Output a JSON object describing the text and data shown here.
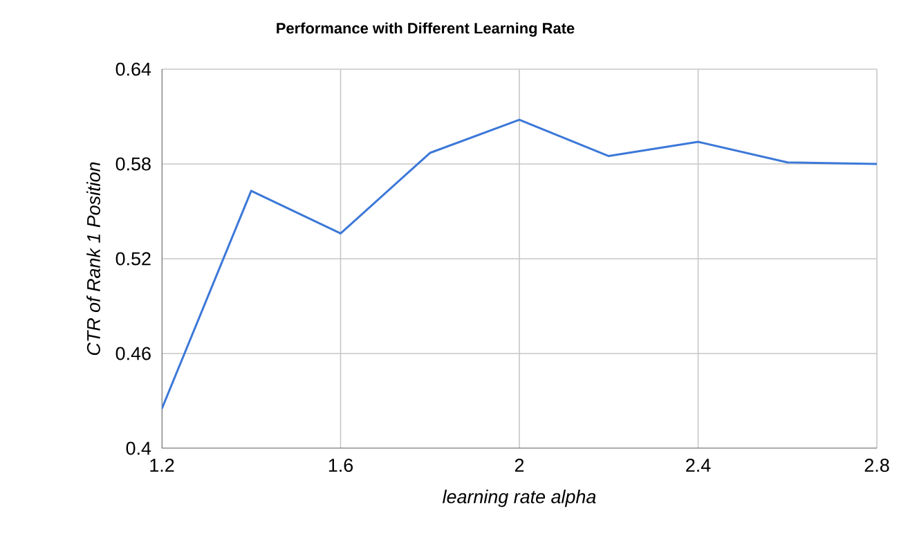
{
  "chart_data": {
    "type": "line",
    "title": "Performance with Different Learning Rate",
    "xlabel": "learning rate alpha",
    "ylabel": "CTR of Rank 1 Position",
    "x": [
      1.2,
      1.4,
      1.6,
      1.8,
      2.0,
      2.2,
      2.4,
      2.6,
      2.8
    ],
    "series": [
      {
        "color": "#3c78d8",
        "values": [
          0.425,
          0.563,
          0.536,
          0.587,
          0.608,
          0.585,
          0.594,
          0.581,
          0.58
        ]
      }
    ],
    "xlim": [
      1.2,
      2.8
    ],
    "xticks": [
      1.2,
      1.6,
      2,
      2.4,
      2.8
    ],
    "ylim": [
      0.4,
      0.64
    ],
    "yticks": [
      0.4,
      0.46,
      0.52,
      0.58,
      0.64
    ],
    "grid": true,
    "marker": "none",
    "line_style": "solid"
  }
}
